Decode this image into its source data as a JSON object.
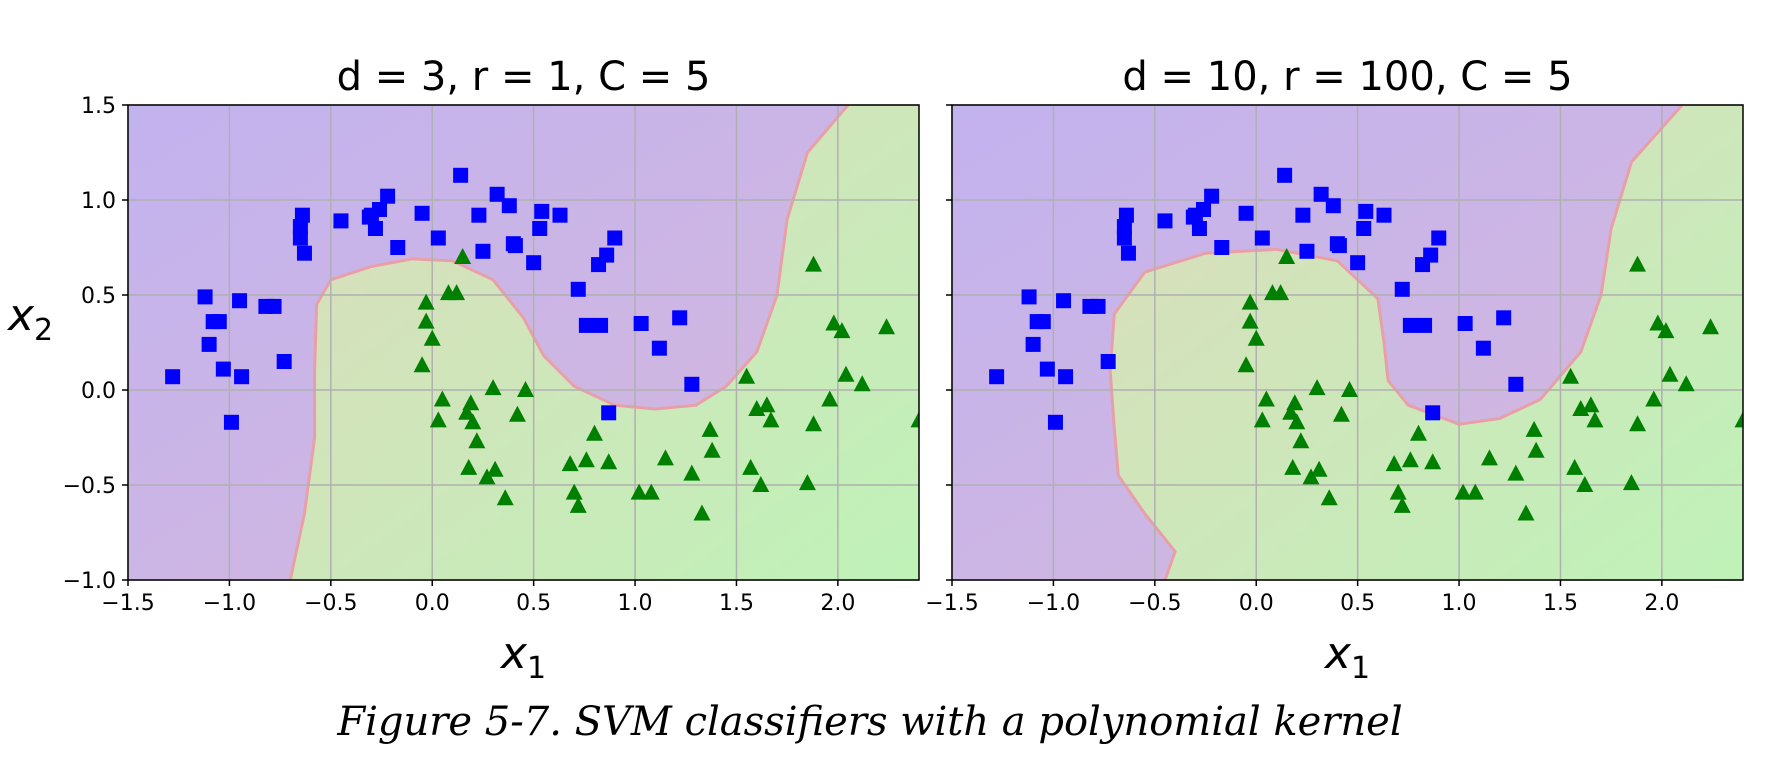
{
  "caption": "Figure 5-7. SVM classifiers with a polynomial kernel",
  "chart_data": [
    {
      "type": "scatter",
      "title": "d = 3, r = 1, C = 5",
      "xlabel": "x1",
      "ylabel": "x2",
      "xlim": [
        -1.5,
        2.4
      ],
      "ylim": [
        -1.0,
        1.5
      ],
      "grid": true,
      "x_ticks": [
        "−1.5",
        "−1.0",
        "−0.5",
        "0.0",
        "0.5",
        "1.0",
        "1.5",
        "2.0"
      ],
      "y_ticks": [
        "−1.0",
        "−0.5",
        "0.0",
        "0.5",
        "1.0",
        "1.5"
      ],
      "x_tick_values": [
        -1.5,
        -1.0,
        -0.5,
        0.0,
        0.5,
        1.0,
        1.5,
        2.0
      ],
      "y_tick_values": [
        -1.0,
        -0.5,
        0.0,
        0.5,
        1.0,
        1.5
      ],
      "boundary": [
        [
          -0.7,
          -1.0
        ],
        [
          -0.63,
          -0.65
        ],
        [
          -0.58,
          -0.25
        ],
        [
          -0.58,
          0.1
        ],
        [
          -0.57,
          0.45
        ],
        [
          -0.5,
          0.58
        ],
        [
          -0.3,
          0.65
        ],
        [
          -0.1,
          0.69
        ],
        [
          0.1,
          0.68
        ],
        [
          0.3,
          0.58
        ],
        [
          0.45,
          0.38
        ],
        [
          0.55,
          0.18
        ],
        [
          0.7,
          0.02
        ],
        [
          0.9,
          -0.08
        ],
        [
          1.1,
          -0.1
        ],
        [
          1.3,
          -0.08
        ],
        [
          1.45,
          0.02
        ],
        [
          1.6,
          0.2
        ],
        [
          1.7,
          0.5
        ],
        [
          1.75,
          0.9
        ],
        [
          1.85,
          1.25
        ],
        [
          2.05,
          1.5
        ]
      ],
      "series": [
        {
          "marker": "square",
          "color": "#0000ff",
          "x": [
            -1.28,
            -1.12,
            -1.05,
            -0.95,
            -0.82,
            -0.78,
            -0.73,
            -0.65,
            -0.64,
            -0.63,
            -0.45,
            -0.3,
            -0.28,
            -0.26,
            -0.22,
            -0.17,
            -0.05,
            0.03,
            0.14,
            0.23,
            0.25,
            0.32,
            0.38,
            0.41,
            0.5,
            0.53,
            0.54,
            0.63,
            0.72,
            0.76,
            0.82,
            0.83,
            0.86,
            0.9,
            1.03,
            1.12,
            1.22,
            1.28,
            -1.03,
            -0.99,
            -0.94,
            -1.1,
            -1.08,
            0.87,
            -0.65,
            -0.31,
            0.4
          ],
          "y": [
            0.07,
            0.49,
            0.36,
            0.47,
            0.44,
            0.44,
            0.15,
            0.86,
            0.92,
            0.72,
            0.89,
            0.92,
            0.85,
            0.95,
            1.02,
            0.75,
            0.93,
            0.8,
            1.13,
            0.92,
            0.73,
            1.03,
            0.97,
            0.76,
            0.67,
            0.85,
            0.94,
            0.92,
            0.53,
            0.34,
            0.66,
            0.34,
            0.71,
            0.8,
            0.35,
            0.22,
            0.38,
            0.03,
            0.11,
            -0.17,
            0.07,
            0.24,
            0.36,
            -0.12,
            0.8,
            0.91,
            0.77
          ]
        },
        {
          "marker": "triangle",
          "color": "#008000",
          "x": [
            -0.05,
            -0.03,
            0.0,
            0.03,
            0.08,
            0.12,
            0.15,
            0.18,
            0.19,
            0.2,
            0.22,
            0.27,
            0.3,
            0.31,
            0.36,
            0.42,
            0.46,
            0.68,
            0.7,
            0.72,
            0.76,
            0.8,
            0.87,
            1.02,
            1.08,
            1.15,
            1.28,
            1.33,
            1.37,
            1.38,
            1.55,
            1.57,
            1.6,
            1.62,
            1.65,
            1.67,
            1.85,
            1.88,
            1.88,
            1.96,
            1.98,
            2.02,
            2.04,
            2.12,
            2.24,
            2.4,
            -0.03,
            0.05,
            0.17
          ],
          "y": [
            0.13,
            0.46,
            0.27,
            -0.16,
            0.51,
            0.51,
            0.7,
            -0.41,
            -0.07,
            -0.17,
            -0.27,
            -0.46,
            0.01,
            -0.42,
            -0.57,
            -0.13,
            0.0,
            -0.39,
            -0.54,
            -0.61,
            -0.37,
            -0.23,
            -0.38,
            -0.54,
            -0.54,
            -0.36,
            -0.44,
            -0.65,
            -0.21,
            -0.32,
            0.07,
            -0.41,
            -0.1,
            -0.5,
            -0.08,
            -0.16,
            -0.49,
            0.66,
            -0.18,
            -0.05,
            0.35,
            0.31,
            0.08,
            0.03,
            0.33,
            -0.16,
            0.36,
            -0.05,
            -0.12
          ]
        }
      ]
    },
    {
      "type": "scatter",
      "title": "d = 10, r = 100, C = 5",
      "xlabel": "x1",
      "ylabel": "",
      "xlim": [
        -1.5,
        2.4
      ],
      "ylim": [
        -1.0,
        1.5
      ],
      "grid": true,
      "x_ticks": [
        "−1.5",
        "−1.0",
        "−0.5",
        "0.0",
        "0.5",
        "1.0",
        "1.5",
        "2.0"
      ],
      "y_ticks": [],
      "x_tick_values": [
        -1.5,
        -1.0,
        -0.5,
        0.0,
        0.5,
        1.0,
        1.5,
        2.0
      ],
      "y_tick_values": [
        -1.0,
        -0.5,
        0.0,
        0.5,
        1.0,
        1.5
      ],
      "boundary": [
        [
          -0.45,
          -1.0
        ],
        [
          -0.4,
          -0.85
        ],
        [
          -0.55,
          -0.65
        ],
        [
          -0.68,
          -0.45
        ],
        [
          -0.7,
          -0.2
        ],
        [
          -0.72,
          0.1
        ],
        [
          -0.7,
          0.4
        ],
        [
          -0.55,
          0.62
        ],
        [
          -0.25,
          0.72
        ],
        [
          0.1,
          0.74
        ],
        [
          0.4,
          0.68
        ],
        [
          0.6,
          0.48
        ],
        [
          0.63,
          0.25
        ],
        [
          0.65,
          0.05
        ],
        [
          0.75,
          -0.08
        ],
        [
          1.0,
          -0.18
        ],
        [
          1.2,
          -0.15
        ],
        [
          1.4,
          -0.05
        ],
        [
          1.6,
          0.2
        ],
        [
          1.7,
          0.5
        ],
        [
          1.75,
          0.85
        ],
        [
          1.85,
          1.2
        ],
        [
          2.1,
          1.5
        ]
      ],
      "series": [
        {
          "marker": "square",
          "color": "#0000ff",
          "x": [
            -1.28,
            -1.12,
            -1.05,
            -0.95,
            -0.82,
            -0.78,
            -0.73,
            -0.65,
            -0.64,
            -0.63,
            -0.45,
            -0.3,
            -0.28,
            -0.26,
            -0.22,
            -0.17,
            -0.05,
            0.03,
            0.14,
            0.23,
            0.25,
            0.32,
            0.38,
            0.41,
            0.5,
            0.53,
            0.54,
            0.63,
            0.72,
            0.76,
            0.82,
            0.83,
            0.86,
            0.9,
            1.03,
            1.12,
            1.22,
            1.28,
            -1.03,
            -0.99,
            -0.94,
            -1.1,
            -1.08,
            0.87,
            -0.65,
            -0.31,
            0.4
          ],
          "y": [
            0.07,
            0.49,
            0.36,
            0.47,
            0.44,
            0.44,
            0.15,
            0.86,
            0.92,
            0.72,
            0.89,
            0.92,
            0.85,
            0.95,
            1.02,
            0.75,
            0.93,
            0.8,
            1.13,
            0.92,
            0.73,
            1.03,
            0.97,
            0.76,
            0.67,
            0.85,
            0.94,
            0.92,
            0.53,
            0.34,
            0.66,
            0.34,
            0.71,
            0.8,
            0.35,
            0.22,
            0.38,
            0.03,
            0.11,
            -0.17,
            0.07,
            0.24,
            0.36,
            -0.12,
            0.8,
            0.91,
            0.77
          ]
        },
        {
          "marker": "triangle",
          "color": "#008000",
          "x": [
            -0.05,
            -0.03,
            0.0,
            0.03,
            0.08,
            0.12,
            0.15,
            0.18,
            0.19,
            0.2,
            0.22,
            0.27,
            0.3,
            0.31,
            0.36,
            0.42,
            0.46,
            0.68,
            0.7,
            0.72,
            0.76,
            0.8,
            0.87,
            1.02,
            1.08,
            1.15,
            1.28,
            1.33,
            1.37,
            1.38,
            1.55,
            1.57,
            1.6,
            1.62,
            1.65,
            1.67,
            1.85,
            1.88,
            1.88,
            1.96,
            1.98,
            2.02,
            2.04,
            2.12,
            2.24,
            2.4,
            -0.03,
            0.05,
            0.17
          ],
          "y": [
            0.13,
            0.46,
            0.27,
            -0.16,
            0.51,
            0.51,
            0.7,
            -0.41,
            -0.07,
            -0.17,
            -0.27,
            -0.46,
            0.01,
            -0.42,
            -0.57,
            -0.13,
            0.0,
            -0.39,
            -0.54,
            -0.61,
            -0.37,
            -0.23,
            -0.38,
            -0.54,
            -0.54,
            -0.36,
            -0.44,
            -0.65,
            -0.21,
            -0.32,
            0.07,
            -0.41,
            -0.1,
            -0.5,
            -0.08,
            -0.16,
            -0.49,
            0.66,
            -0.18,
            -0.05,
            0.35,
            0.31,
            0.08,
            0.03,
            0.33,
            -0.16,
            0.36,
            -0.05,
            -0.12
          ]
        }
      ]
    }
  ]
}
